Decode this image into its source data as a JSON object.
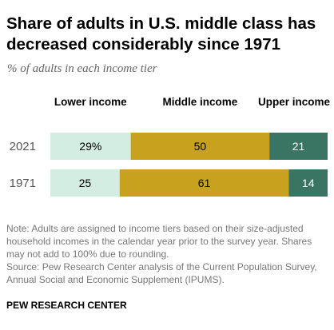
{
  "header": {
    "title": "Share of adults in U.S. middle class has decreased considerably since 1971",
    "subtitle": "% of adults in each income tier"
  },
  "footer": {
    "note": "Note: Adults are assigned to income tiers based on their size-adjusted household incomes in the calendar year prior to the survey year. Shares may not add to 100% due to rounding.",
    "source": "Source: Pew Research Center analysis of the Current Population Survey, Annual Social and Economic Supplement (IPUMS).",
    "org": "PEW RESEARCH CENTER"
  },
  "chart_data": {
    "type": "bar",
    "orientation": "horizontal",
    "stacked": true,
    "title": "Share of adults in U.S. middle class has decreased considerably since 1971",
    "subtitle": "% of adults in each income tier",
    "categories": [
      "2021",
      "1971"
    ],
    "series": [
      {
        "name": "Lower income",
        "values": [
          29,
          25
        ],
        "labels": [
          "29%",
          "25"
        ],
        "color": "#d4ede3",
        "label_color": "#000000"
      },
      {
        "name": "Middle income",
        "values": [
          50,
          61
        ],
        "labels": [
          "50",
          "61"
        ],
        "color": "#c8a21e",
        "label_color": "#000000"
      },
      {
        "name": "Upper income",
        "values": [
          21,
          14
        ],
        "labels": [
          "21",
          "14"
        ],
        "color": "#3a7563",
        "label_color": "#ffffff"
      }
    ],
    "legend_position": "top",
    "xlim": [
      0,
      100
    ],
    "grid": false,
    "xlabel": "",
    "ylabel": ""
  }
}
